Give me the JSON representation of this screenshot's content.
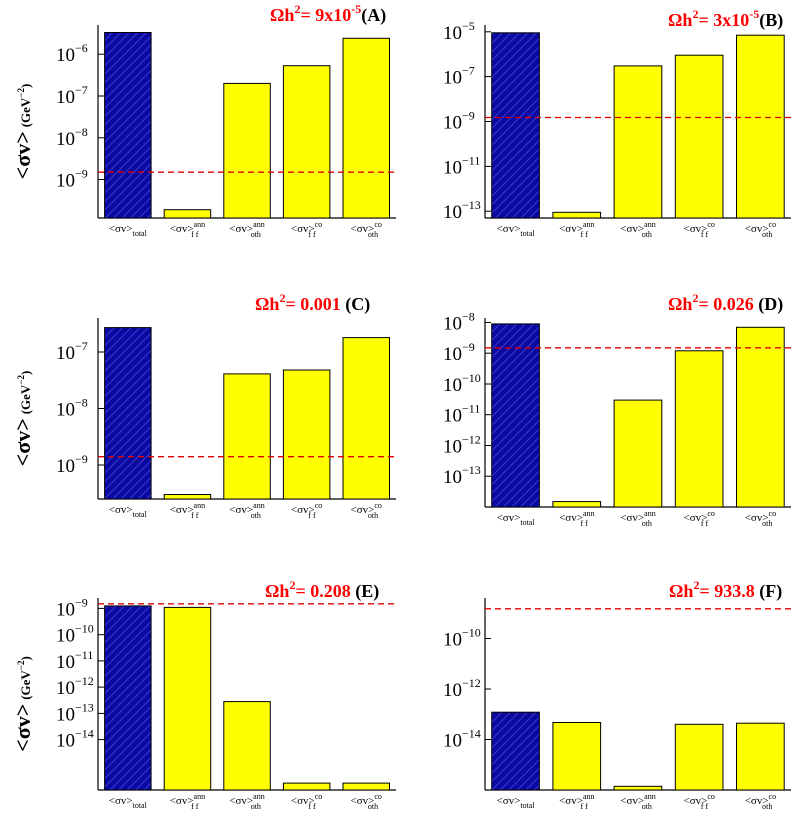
{
  "chart_data": [
    {
      "type": "bar",
      "log_scale": true,
      "panel_id": "(A)",
      "omega_text": "Ωh",
      "omega_exp": "2",
      "omega_eq": "= 9x10",
      "omega_eq_exp": "-5",
      "ylabel": "<σv>",
      "yunit": "(GeV",
      "yunit_exp": "−2",
      "yunit_close": ")",
      "categories": [
        "total",
        "ff ann",
        "oth ann",
        "ff co",
        "oth co"
      ],
      "values": [
        3.3e-06,
        1.9e-10,
        2e-07,
        5.3e-07,
        2.4e-06
      ],
      "bar_colors": [
        "#0a0aa0",
        "#ffff00",
        "#ffff00",
        "#ffff00",
        "#ffff00"
      ],
      "threshold": 1.5e-09,
      "ylim": [
        1.2e-10,
        5e-06
      ],
      "yticks": [
        {
          "base": "10",
          "exp": "−9",
          "value": 1e-09
        },
        {
          "base": "10",
          "exp": "−8",
          "value": 1e-08
        },
        {
          "base": "10",
          "exp": "−7",
          "value": 1e-07
        },
        {
          "base": "10",
          "exp": "−6",
          "value": 1e-06
        }
      ]
    },
    {
      "type": "bar",
      "log_scale": true,
      "panel_id": "(B)",
      "omega_text": "Ωh",
      "omega_exp": "2",
      "omega_eq": "= 3x10",
      "omega_eq_exp": "-5",
      "ylabel": "",
      "yunit": "",
      "yunit_exp": "",
      "yunit_close": "",
      "categories": [
        "total",
        "ff ann",
        "oth ann",
        "ff co",
        "oth co"
      ],
      "values": [
        9e-06,
        9e-14,
        3e-07,
        9e-07,
        7e-06
      ],
      "bar_colors": [
        "#0a0aa0",
        "#ffff00",
        "#ffff00",
        "#ffff00",
        "#ffff00"
      ],
      "threshold": 1.5e-09,
      "ylim": [
        5e-14,
        2e-05
      ],
      "yticks": [
        {
          "base": "10",
          "exp": "−13",
          "value": 1e-13
        },
        {
          "base": "10",
          "exp": "−11",
          "value": 1e-11
        },
        {
          "base": "10",
          "exp": "−9",
          "value": 1e-09
        },
        {
          "base": "10",
          "exp": "−7",
          "value": 1e-07
        },
        {
          "base": "10",
          "exp": "−5",
          "value": 1e-05
        }
      ]
    },
    {
      "type": "bar",
      "log_scale": true,
      "panel_id": "(C)",
      "omega_text": "Ωh",
      "omega_exp": "2",
      "omega_eq": "= 0.001",
      "omega_eq_exp": "",
      "ylabel": "<σv>",
      "yunit": "(GeV",
      "yunit_exp": "−2",
      "yunit_close": ")",
      "categories": [
        "total",
        "ff ann",
        "oth ann",
        "ff co",
        "oth co"
      ],
      "values": [
        2.7e-07,
        3e-10,
        4.1e-08,
        4.8e-08,
        1.8e-07
      ],
      "bar_colors": [
        "#0a0aa0",
        "#ffff00",
        "#ffff00",
        "#ffff00",
        "#ffff00"
      ],
      "threshold": 1.4e-09,
      "ylim": [
        2.5e-10,
        4e-07
      ],
      "yticks": [
        {
          "base": "10",
          "exp": "−9",
          "value": 1e-09
        },
        {
          "base": "10",
          "exp": "−8",
          "value": 1e-08
        },
        {
          "base": "10",
          "exp": "−7",
          "value": 1e-07
        }
      ]
    },
    {
      "type": "bar",
      "log_scale": true,
      "panel_id": "(D)",
      "omega_text": "Ωh",
      "omega_exp": "2",
      "omega_eq": "= 0.026",
      "omega_eq_exp": "",
      "ylabel": "",
      "yunit": "",
      "yunit_exp": "",
      "yunit_close": "",
      "categories": [
        "total",
        "ff ann",
        "oth ann",
        "ff co",
        "oth co"
      ],
      "values": [
        9e-09,
        1.5e-14,
        3e-11,
        1.2e-09,
        7e-09
      ],
      "bar_colors": [
        "#0a0aa0",
        "#ffff00",
        "#ffff00",
        "#ffff00",
        "#ffff00"
      ],
      "threshold": 1.5e-09,
      "ylim": [
        1e-14,
        1.4e-08
      ],
      "yticks": [
        {
          "base": "10",
          "exp": "−13",
          "value": 1e-13
        },
        {
          "base": "10",
          "exp": "−12",
          "value": 1e-12
        },
        {
          "base": "10",
          "exp": "−11",
          "value": 1e-11
        },
        {
          "base": "10",
          "exp": "−10",
          "value": 1e-10
        },
        {
          "base": "10",
          "exp": "−9",
          "value": 1e-09
        },
        {
          "base": "10",
          "exp": "−8",
          "value": 1e-08
        }
      ]
    },
    {
      "type": "bar",
      "log_scale": true,
      "panel_id": "(E)",
      "omega_text": "Ωh",
      "omega_exp": "2",
      "omega_eq": "= 0.208",
      "omega_eq_exp": "",
      "ylabel": "<σv>",
      "yunit": "(GeV",
      "yunit_exp": "−2",
      "yunit_close": ")",
      "categories": [
        "total",
        "ff ann",
        "oth ann",
        "ff co",
        "oth co"
      ],
      "values": [
        1.25e-09,
        1.1e-09,
        2.8e-13,
        2.2e-16,
        2.2e-16
      ],
      "bar_colors": [
        "#0a0aa0",
        "#ffff00",
        "#ffff00",
        "#ffff00",
        "#ffff00"
      ],
      "threshold": 1.5e-09,
      "ylim": [
        1.2e-16,
        2.5e-09
      ],
      "yticks": [
        {
          "base": "10",
          "exp": "−14",
          "value": 1e-14
        },
        {
          "base": "10",
          "exp": "−13",
          "value": 1e-13
        },
        {
          "base": "10",
          "exp": "−12",
          "value": 1e-12
        },
        {
          "base": "10",
          "exp": "−11",
          "value": 1e-11
        },
        {
          "base": "10",
          "exp": "−10",
          "value": 1e-10
        },
        {
          "base": "10",
          "exp": "−9",
          "value": 1e-09
        }
      ]
    },
    {
      "type": "bar",
      "log_scale": true,
      "panel_id": "(F)",
      "omega_text": "Ωh",
      "omega_exp": "2",
      "omega_eq": "= 933.8",
      "omega_eq_exp": "",
      "ylabel": "",
      "yunit": "",
      "yunit_exp": "",
      "yunit_close": "",
      "categories": [
        "total",
        "ff ann",
        "oth ann",
        "ff co",
        "oth co"
      ],
      "values": [
        1.2e-13,
        4.7e-14,
        1.4e-16,
        4e-14,
        4.4e-14
      ],
      "bar_colors": [
        "#0a0aa0",
        "#ffff00",
        "#ffff00",
        "#ffff00",
        "#ffff00"
      ],
      "threshold": 1.5e-09,
      "ylim": [
        1e-16,
        4e-09
      ],
      "yticks": [
        {
          "base": "10",
          "exp": "−14",
          "value": 1e-14
        },
        {
          "base": "10",
          "exp": "−12",
          "value": 1e-12
        },
        {
          "base": "10",
          "exp": "−10",
          "value": 1e-10
        }
      ]
    }
  ]
}
